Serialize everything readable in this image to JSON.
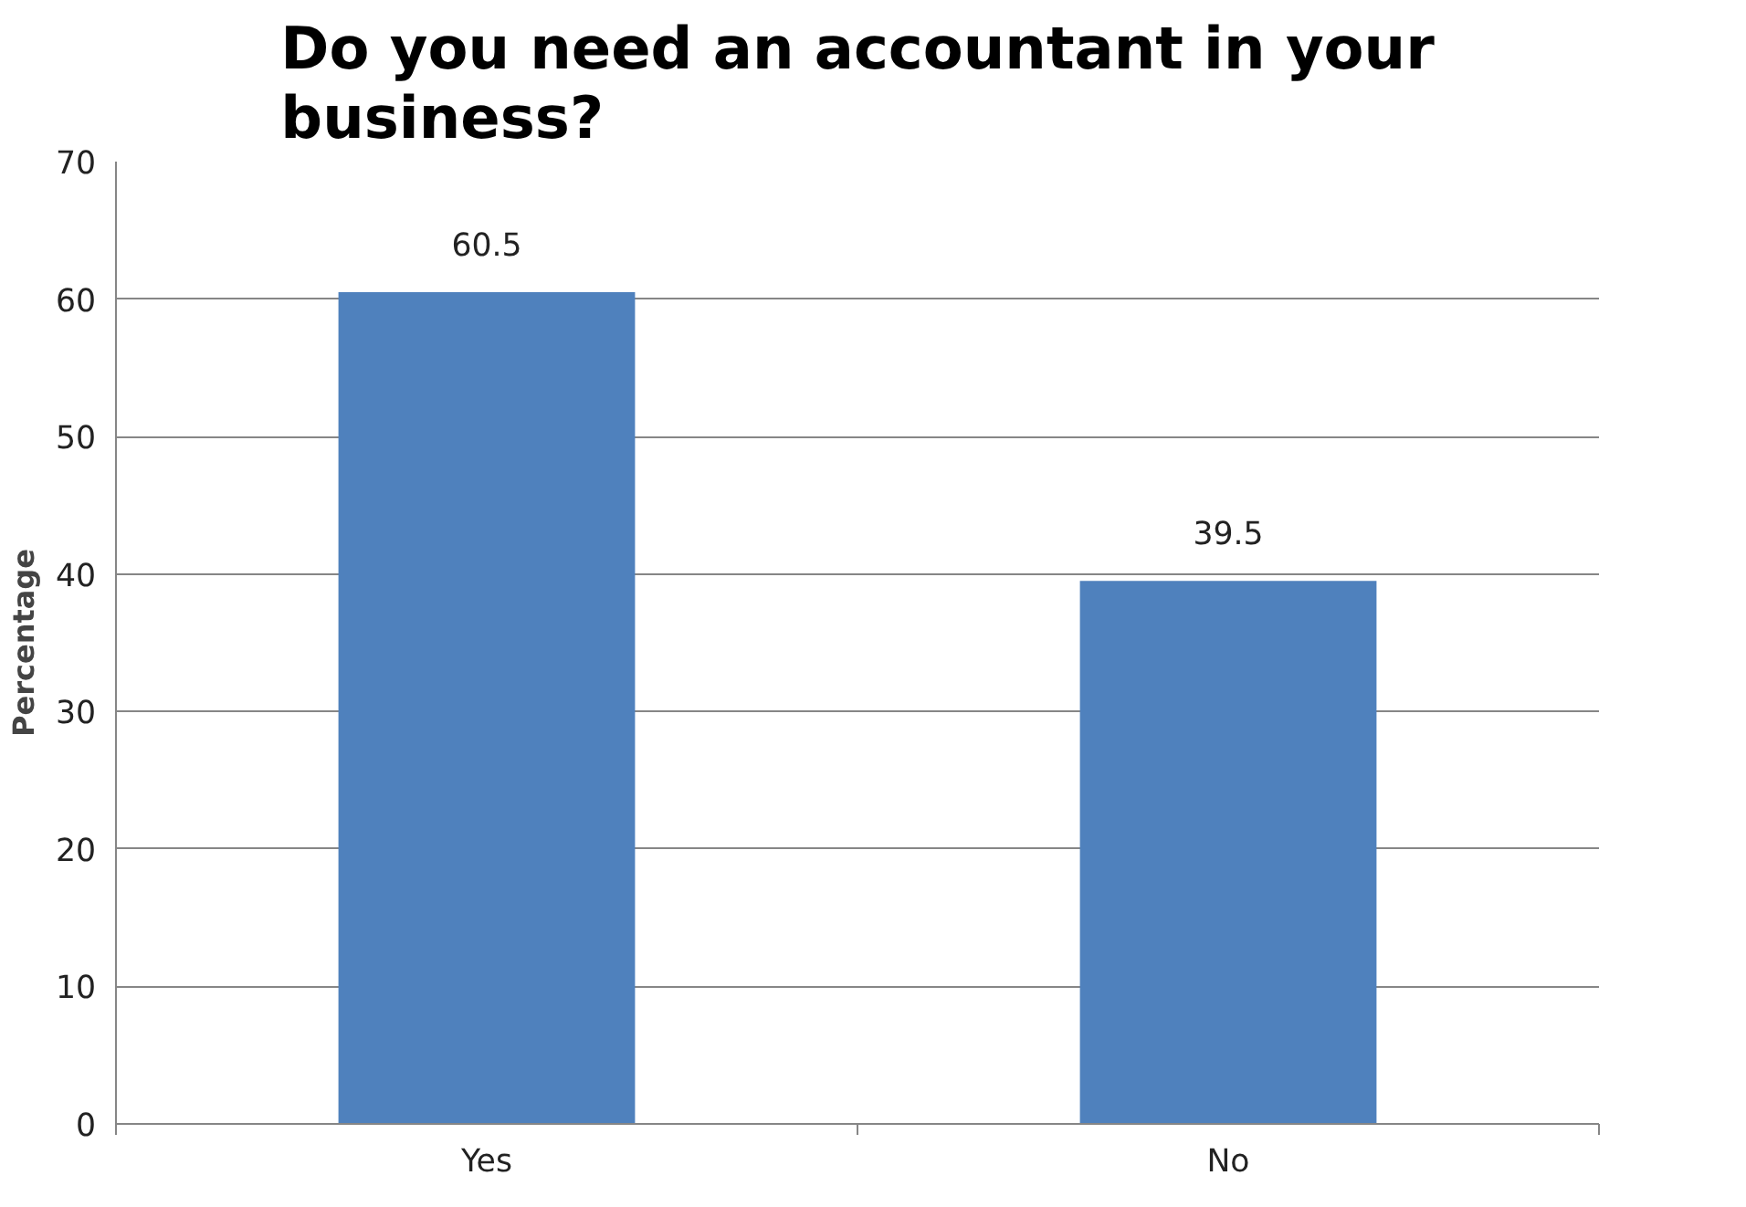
{
  "chart_data": {
    "type": "bar",
    "title": "Do you need an accountant in your business?",
    "ylabel": "Percentage",
    "categories": [
      "Yes",
      "No"
    ],
    "values": [
      60.5,
      39.5
    ],
    "color": "#4f81bd",
    "ylim": [
      0,
      70
    ],
    "yticks": [
      0,
      10,
      20,
      30,
      40,
      50,
      60,
      70
    ],
    "grid": "y",
    "data_labels": true
  }
}
